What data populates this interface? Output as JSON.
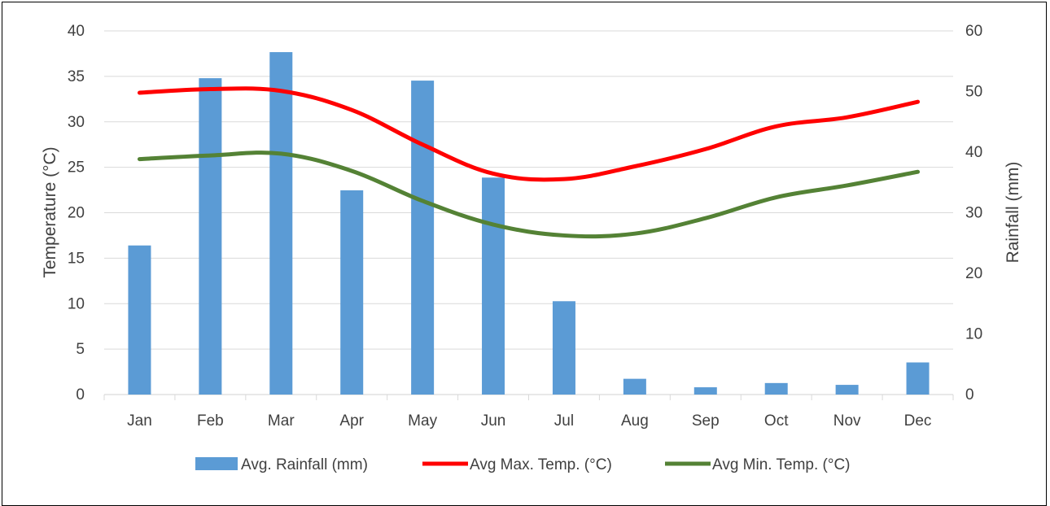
{
  "chart_data": {
    "type": "bar",
    "title": "",
    "categories": [
      "Jan",
      "Feb",
      "Mar",
      "Apr",
      "May",
      "Jun",
      "Jul",
      "Aug",
      "Sep",
      "Oct",
      "Nov",
      "Dec"
    ],
    "ylabel_left": "Temperature (°C)",
    "ylabel_right": "Rainfall (mm)",
    "ylim_left": [
      0,
      40
    ],
    "ylim_right": [
      0,
      60
    ],
    "yticks_left": [
      0,
      5,
      10,
      15,
      20,
      25,
      30,
      35,
      40
    ],
    "yticks_right": [
      0,
      10,
      20,
      30,
      40,
      50,
      60
    ],
    "grid": true,
    "legend_position": "bottom",
    "series": [
      {
        "name": "Avg. Rainfall (mm)",
        "type": "bar",
        "axis": "right",
        "color": "#5b9bd5",
        "values": [
          24.6,
          52.2,
          56.5,
          33.7,
          51.8,
          35.8,
          15.4,
          2.6,
          1.2,
          1.9,
          1.6,
          5.3
        ]
      },
      {
        "name": "Avg Max. Temp. (°C)",
        "type": "line",
        "axis": "left",
        "color": "#ff0000",
        "values": [
          33.2,
          33.6,
          33.4,
          31.3,
          27.5,
          24.3,
          23.7,
          25.1,
          27.0,
          29.5,
          30.5,
          32.2
        ]
      },
      {
        "name": "Avg Min. Temp. (°C)",
        "type": "line",
        "axis": "left",
        "color": "#548235",
        "values": [
          25.9,
          26.3,
          26.5,
          24.6,
          21.3,
          18.7,
          17.5,
          17.7,
          19.4,
          21.7,
          23.0,
          24.5
        ]
      }
    ]
  }
}
